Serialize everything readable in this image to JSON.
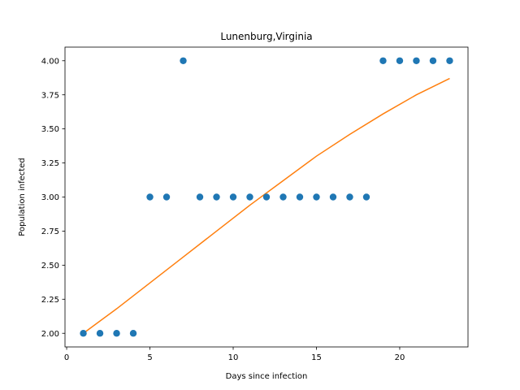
{
  "chart_data": {
    "type": "scatter",
    "title": "Lunenburg,Virginia",
    "xlabel": "Days since infection",
    "ylabel": "Population infected",
    "xlim": [
      -0.1,
      24.1
    ],
    "ylim": [
      1.9,
      4.1
    ],
    "xticks": [
      0,
      5,
      10,
      15,
      20
    ],
    "xtick_labels": [
      "0",
      "5",
      "10",
      "15",
      "20"
    ],
    "yticks": [
      2.0,
      2.25,
      2.5,
      2.75,
      3.0,
      3.25,
      3.5,
      3.75,
      4.0
    ],
    "ytick_labels": [
      "2.00",
      "2.25",
      "2.50",
      "2.75",
      "3.00",
      "3.25",
      "3.50",
      "3.75",
      "4.00"
    ],
    "grid": false,
    "series": [
      {
        "type": "scatter",
        "color": "#1f77b4",
        "x": [
          1,
          2,
          3,
          4,
          5,
          6,
          7,
          8,
          9,
          10,
          11,
          12,
          13,
          14,
          15,
          16,
          17,
          18,
          19,
          20,
          21,
          22,
          23
        ],
        "y": [
          2,
          2,
          2,
          2,
          3,
          3,
          4,
          3,
          3,
          3,
          3,
          3,
          3,
          3,
          3,
          3,
          3,
          3,
          4,
          4,
          4,
          4,
          4
        ]
      },
      {
        "type": "line",
        "color": "#ff7f0e",
        "x": [
          1,
          3,
          5,
          7,
          9,
          11,
          13,
          15,
          17,
          19,
          21,
          23
        ],
        "y": [
          2.0,
          2.18,
          2.37,
          2.56,
          2.75,
          2.94,
          3.12,
          3.3,
          3.46,
          3.61,
          3.75,
          3.87
        ]
      }
    ]
  }
}
